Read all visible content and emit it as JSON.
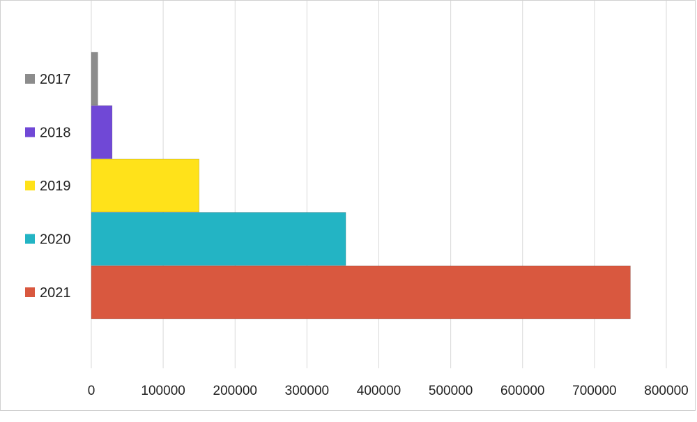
{
  "chart_data": {
    "type": "bar",
    "orientation": "horizontal",
    "categories": [
      "2017",
      "2018",
      "2019",
      "2020",
      "2021"
    ],
    "values": [
      9000,
      29000,
      150000,
      354000,
      750000
    ],
    "colors": [
      "#8c8c8c",
      "#7048d6",
      "#ffe21a",
      "#23b4c4",
      "#d9583f"
    ],
    "xlim": [
      0,
      800000
    ],
    "xticks": [
      "0",
      "100000",
      "200000",
      "300000",
      "400000",
      "500000",
      "600000",
      "700000",
      "800000"
    ],
    "grid": "vertical",
    "legend": "none"
  }
}
